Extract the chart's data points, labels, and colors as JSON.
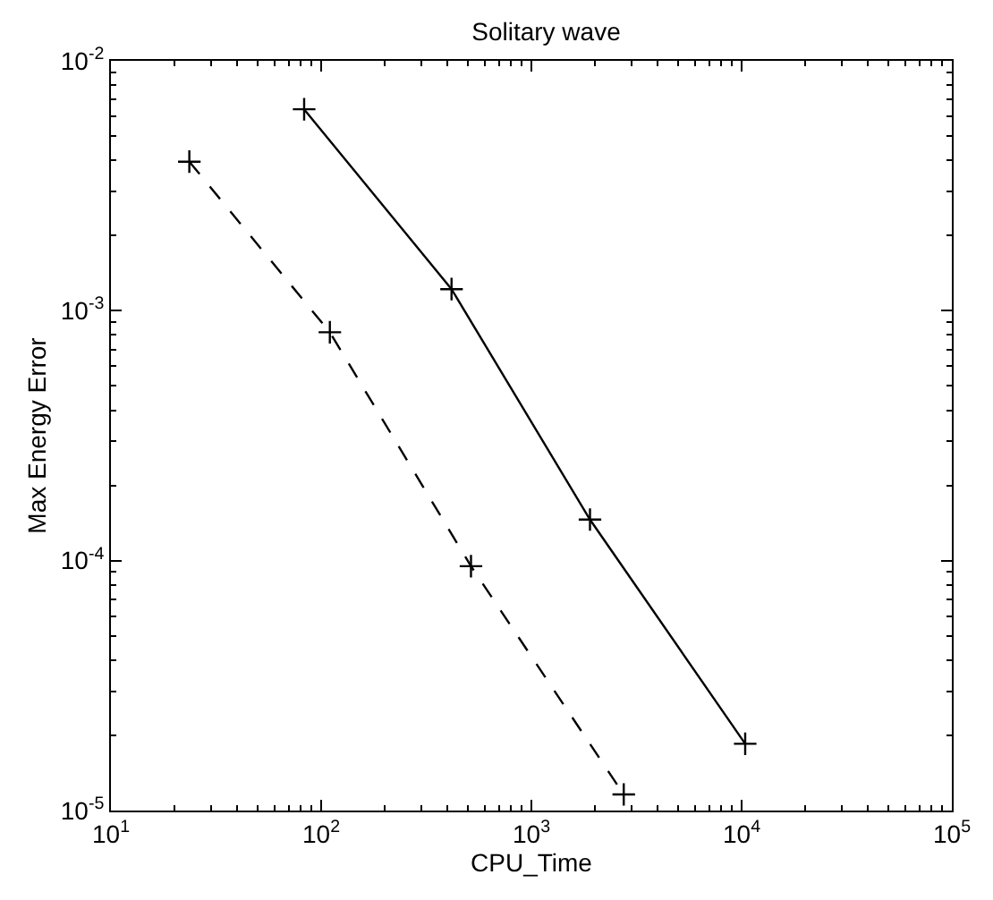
{
  "chart_data": {
    "type": "line",
    "title": "Solitary wave",
    "xlabel": "CPU_Time",
    "ylabel": "Max Energy Error",
    "log": "xy",
    "grid": false,
    "marker": "cross",
    "xlim": [
      10,
      100000
    ],
    "xticks": [
      {
        "value": 10,
        "label": "10$^{1}$"
      },
      {
        "value": 100,
        "label": "10$^{2}$"
      },
      {
        "value": 1000,
        "label": "10$^{3}$"
      },
      {
        "value": 10000,
        "label": "10$^{4}$"
      },
      {
        "value": 100000,
        "label": "10$^{5}$"
      }
    ],
    "ylim": [
      1e-05,
      0.01
    ],
    "yticks": [
      {
        "value": 1e-05,
        "label": "10$^{-5}$"
      },
      {
        "value": 0.0001,
        "label": "10$^{-4}$"
      },
      {
        "value": 0.001,
        "label": "10$^{-3}$"
      },
      {
        "value": 0.01,
        "label": "10$^{-2}$"
      }
    ],
    "series": [
      {
        "color": "#000000",
        "line_style": "solid",
        "x": [
          83,
          417,
          1900,
          10400
        ],
        "values": [
          0.0064,
          0.00122,
          0.000146,
          1.85e-05
        ]
      },
      {
        "color": "#000000",
        "line_style": "dashed",
        "x": [
          23.6,
          110,
          516,
          2750
        ],
        "values": [
          0.00395,
          0.00082,
          9.5e-05,
          1.16e-05
        ]
      }
    ]
  }
}
